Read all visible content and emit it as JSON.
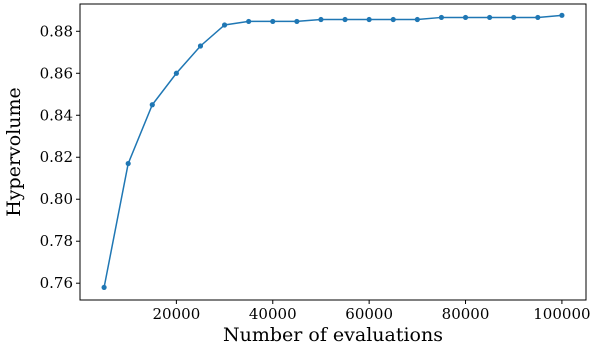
{
  "chart_data": {
    "type": "line",
    "title": "",
    "xlabel": "Number of evaluations",
    "ylabel": "Hypervolume",
    "xlim": [
      0,
      105000
    ],
    "ylim": [
      0.752,
      0.893
    ],
    "xticks": [
      20000,
      40000,
      60000,
      80000,
      100000
    ],
    "xtick_labels": [
      "20000",
      "40000",
      "60000",
      "80000",
      "100000"
    ],
    "yticks": [
      0.76,
      0.78,
      0.8,
      0.82,
      0.84,
      0.86,
      0.88
    ],
    "ytick_labels": [
      "0.76",
      "0.78",
      "0.80",
      "0.82",
      "0.84",
      "0.86",
      "0.88"
    ],
    "grid": false,
    "legend": "none",
    "series": [
      {
        "color": "#1f77b4",
        "marker": "circle",
        "x": [
          5000,
          10000,
          15000,
          20000,
          25000,
          30000,
          35000,
          40000,
          45000,
          50000,
          55000,
          60000,
          65000,
          70000,
          75000,
          80000,
          85000,
          90000,
          95000,
          100000
        ],
        "y": [
          0.758,
          0.817,
          0.845,
          0.86,
          0.873,
          0.883,
          0.8847,
          0.8847,
          0.8847,
          0.8856,
          0.8856,
          0.8856,
          0.8856,
          0.8856,
          0.8866,
          0.8866,
          0.8866,
          0.8866,
          0.8866,
          0.8876
        ]
      }
    ]
  }
}
